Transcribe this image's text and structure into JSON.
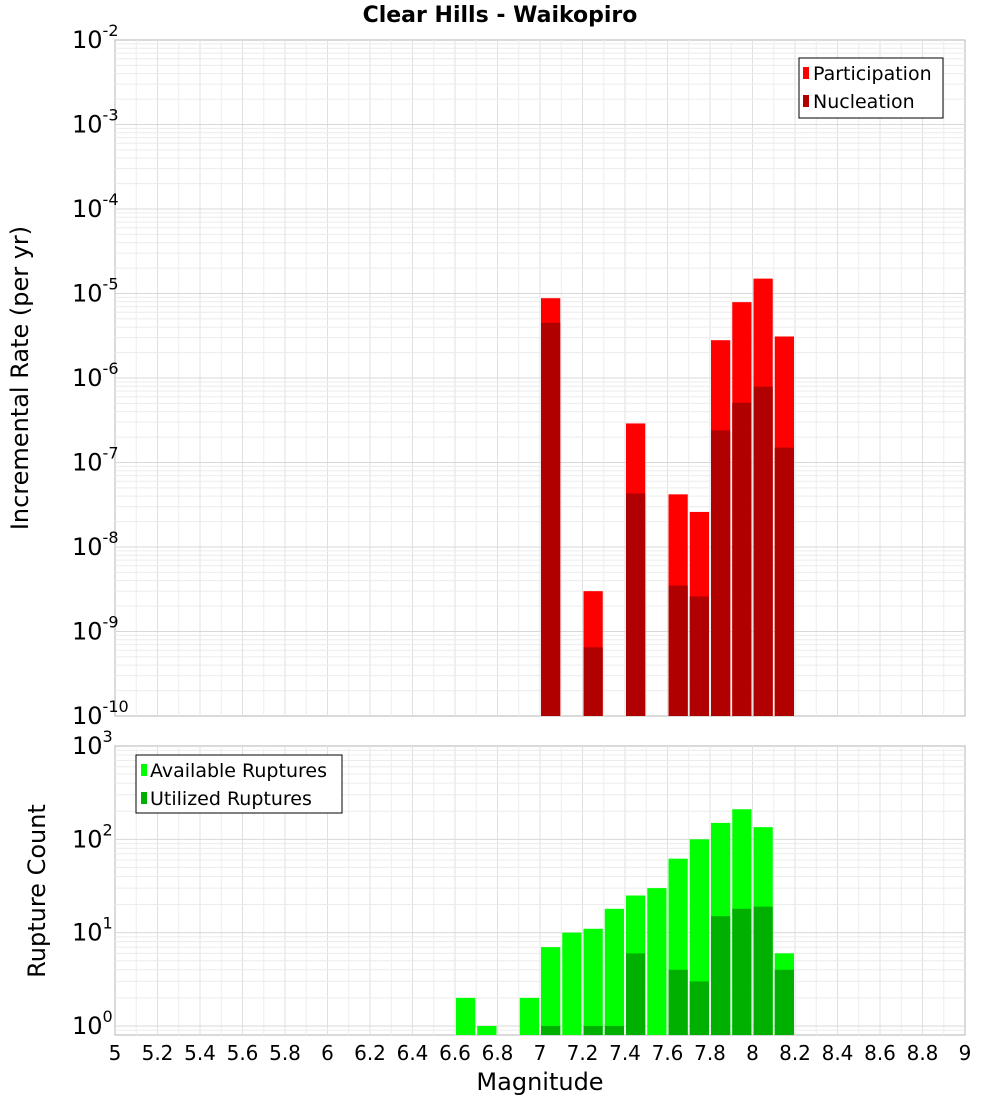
{
  "chart_data": [
    {
      "type": "bar",
      "title": "Clear Hills - Waikopiro",
      "ylabel": "Incremental Rate (per yr)",
      "y_scale": "log",
      "ylim": [
        1e-10,
        0.01
      ],
      "y_ticks": [
        {
          "base": "10",
          "exp": "-10",
          "value": 1e-10
        },
        {
          "base": "10",
          "exp": "-9",
          "value": 1e-09
        },
        {
          "base": "10",
          "exp": "-8",
          "value": 1e-08
        },
        {
          "base": "10",
          "exp": "-7",
          "value": 1e-07
        },
        {
          "base": "10",
          "exp": "-6",
          "value": 1e-06
        },
        {
          "base": "10",
          "exp": "-5",
          "value": 1e-05
        },
        {
          "base": "10",
          "exp": "-4",
          "value": 0.0001
        },
        {
          "base": "10",
          "exp": "-3",
          "value": 0.001
        },
        {
          "base": "10",
          "exp": "-2",
          "value": 0.01
        }
      ],
      "xlim": [
        5,
        9
      ],
      "grid": true,
      "legend_position": "top-right",
      "series": [
        {
          "name": "Participation",
          "color": "#ff0000",
          "points": [
            {
              "x": 7.05,
              "y": 8.8e-06
            },
            {
              "x": 7.25,
              "y": 3e-09
            },
            {
              "x": 7.45,
              "y": 2.9e-07
            },
            {
              "x": 7.65,
              "y": 4.2e-08
            },
            {
              "x": 7.75,
              "y": 2.6e-08
            },
            {
              "x": 7.85,
              "y": 2.8e-06
            },
            {
              "x": 7.95,
              "y": 7.9e-06
            },
            {
              "x": 8.05,
              "y": 1.5e-05
            },
            {
              "x": 8.15,
              "y": 3.1e-06
            }
          ]
        },
        {
          "name": "Nucleation",
          "color": "#b00000",
          "points": [
            {
              "x": 7.05,
              "y": 4.5e-06
            },
            {
              "x": 7.25,
              "y": 6.5e-10
            },
            {
              "x": 7.45,
              "y": 4.3e-08
            },
            {
              "x": 7.65,
              "y": 3.5e-09
            },
            {
              "x": 7.75,
              "y": 2.6e-09
            },
            {
              "x": 7.85,
              "y": 2.4e-07
            },
            {
              "x": 7.95,
              "y": 5.1e-07
            },
            {
              "x": 8.05,
              "y": 7.9e-07
            },
            {
              "x": 8.15,
              "y": 1.5e-07
            }
          ]
        }
      ]
    },
    {
      "type": "bar",
      "ylabel": "Rupture Count",
      "xlabel": "Magnitude",
      "y_scale": "log",
      "ylim": [
        0.8,
        1000
      ],
      "y_ticks": [
        {
          "base": "10",
          "exp": "0",
          "value": 1
        },
        {
          "base": "10",
          "exp": "1",
          "value": 10
        },
        {
          "base": "10",
          "exp": "2",
          "value": 100
        },
        {
          "base": "10",
          "exp": "3",
          "value": 1000
        }
      ],
      "xlim": [
        5,
        9
      ],
      "x_ticks": [
        "5",
        "5.2",
        "5.4",
        "5.6",
        "5.8",
        "6",
        "6.2",
        "6.4",
        "6.6",
        "6.8",
        "7",
        "7.2",
        "7.4",
        "7.6",
        "7.8",
        "8",
        "8.2",
        "8.4",
        "8.6",
        "8.8",
        "9"
      ],
      "grid": true,
      "legend_position": "top-left",
      "series": [
        {
          "name": "Available Ruptures",
          "color": "#00ff00",
          "points": [
            {
              "x": 6.65,
              "y": 2
            },
            {
              "x": 6.75,
              "y": 1
            },
            {
              "x": 6.95,
              "y": 2
            },
            {
              "x": 7.05,
              "y": 7
            },
            {
              "x": 7.15,
              "y": 10
            },
            {
              "x": 7.25,
              "y": 11
            },
            {
              "x": 7.35,
              "y": 18
            },
            {
              "x": 7.45,
              "y": 25
            },
            {
              "x": 7.55,
              "y": 30
            },
            {
              "x": 7.65,
              "y": 62
            },
            {
              "x": 7.75,
              "y": 100
            },
            {
              "x": 7.85,
              "y": 150
            },
            {
              "x": 7.95,
              "y": 210
            },
            {
              "x": 8.05,
              "y": 135
            },
            {
              "x": 8.15,
              "y": 6
            }
          ]
        },
        {
          "name": "Utilized Ruptures",
          "color": "#00b000",
          "points": [
            {
              "x": 7.05,
              "y": 1
            },
            {
              "x": 7.25,
              "y": 1
            },
            {
              "x": 7.35,
              "y": 1
            },
            {
              "x": 7.45,
              "y": 6
            },
            {
              "x": 7.65,
              "y": 4
            },
            {
              "x": 7.75,
              "y": 3
            },
            {
              "x": 7.85,
              "y": 15
            },
            {
              "x": 7.95,
              "y": 18
            },
            {
              "x": 8.05,
              "y": 19
            },
            {
              "x": 8.15,
              "y": 4
            }
          ]
        }
      ]
    }
  ]
}
